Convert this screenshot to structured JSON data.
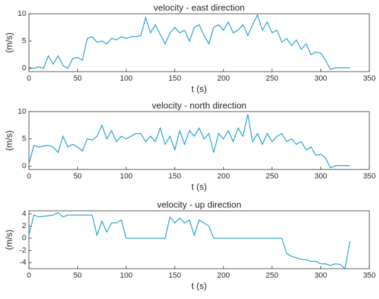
{
  "chart_data": [
    {
      "type": "line",
      "title": "velocity - east direction",
      "xlabel": "t (s)",
      "ylabel": "(m/s)",
      "color": "#1a9bd0",
      "xlim": [
        0,
        350
      ],
      "xticks": [
        0,
        50,
        100,
        150,
        200,
        250,
        300,
        350
      ],
      "ylim": [
        -0.6,
        10
      ],
      "yticks": [
        0,
        5,
        10
      ],
      "x": [
        0,
        5,
        10,
        15,
        20,
        25,
        30,
        35,
        40,
        45,
        50,
        55,
        60,
        65,
        70,
        75,
        80,
        85,
        90,
        95,
        100,
        105,
        110,
        115,
        120,
        125,
        130,
        135,
        140,
        145,
        150,
        155,
        160,
        165,
        170,
        175,
        180,
        185,
        190,
        195,
        200,
        205,
        210,
        215,
        220,
        225,
        230,
        235,
        240,
        245,
        250,
        255,
        260,
        265,
        270,
        275,
        280,
        285,
        290,
        295,
        300,
        305,
        310,
        315,
        320,
        325,
        330
      ],
      "values": [
        0.2,
        0,
        0.3,
        0,
        2.3,
        0.8,
        2.3,
        0.5,
        0,
        1.8,
        2,
        1.5,
        5.5,
        5.8,
        4.8,
        5,
        4.5,
        5.5,
        5.2,
        5.8,
        5.5,
        5.8,
        5.8,
        6,
        9.3,
        6.5,
        8,
        6.2,
        4.5,
        6.5,
        7.5,
        6.5,
        7,
        5,
        7.5,
        8,
        6,
        4.5,
        7.5,
        8,
        7,
        8.5,
        6.5,
        7,
        8,
        6,
        8,
        9.8,
        7,
        8.5,
        6.5,
        7,
        4.8,
        5.5,
        4.2,
        5.2,
        3.5,
        4.5,
        2.5,
        3,
        2.8,
        1.5,
        -0.2,
        0.1,
        0.1,
        0.1,
        0.1
      ]
    },
    {
      "type": "line",
      "title": "velocity - north direction",
      "xlabel": "t (s)",
      "ylabel": "(m/s)",
      "color": "#1a9bd0",
      "xlim": [
        0,
        350
      ],
      "xticks": [
        0,
        50,
        100,
        150,
        200,
        250,
        300,
        350
      ],
      "ylim": [
        -0.6,
        10
      ],
      "yticks": [
        0,
        5,
        10
      ],
      "x": [
        0,
        5,
        10,
        15,
        20,
        25,
        30,
        35,
        40,
        45,
        50,
        55,
        60,
        65,
        70,
        75,
        80,
        85,
        90,
        95,
        100,
        105,
        110,
        115,
        120,
        125,
        130,
        135,
        140,
        145,
        150,
        155,
        160,
        165,
        170,
        175,
        180,
        185,
        190,
        195,
        200,
        205,
        210,
        215,
        220,
        225,
        230,
        235,
        240,
        245,
        250,
        255,
        260,
        265,
        270,
        275,
        280,
        285,
        290,
        295,
        300,
        305,
        310,
        315,
        320,
        325,
        330
      ],
      "values": [
        0.5,
        3.8,
        3.5,
        3.7,
        3.8,
        3.5,
        2.5,
        5.5,
        3.5,
        4,
        3.5,
        2.8,
        5,
        4.8,
        5.5,
        7.5,
        5,
        6.5,
        4.5,
        5.5,
        5,
        5.5,
        6,
        6,
        4.5,
        5.5,
        4.5,
        7,
        4,
        5.5,
        3,
        6.5,
        4,
        6.5,
        5.5,
        7,
        5,
        6,
        2.5,
        6,
        5,
        6.5,
        4.5,
        7,
        5.5,
        9.5,
        4.5,
        6,
        4,
        6,
        4.5,
        5.5,
        6,
        4.5,
        5,
        4,
        4.5,
        3,
        3.5,
        2,
        2.2,
        1.5,
        -0.3,
        0.1,
        0.1,
        0.1,
        0.1
      ]
    },
    {
      "type": "line",
      "title": "velocity - up direction",
      "xlabel": "t (s)",
      "ylabel": "(m/s)",
      "color": "#1a9bd0",
      "xlim": [
        0,
        350
      ],
      "xticks": [
        0,
        50,
        100,
        150,
        200,
        250,
        300,
        350
      ],
      "ylim": [
        -5,
        4.5
      ],
      "yticks": [
        -4,
        -2,
        0,
        2,
        4
      ],
      "x": [
        0,
        5,
        10,
        15,
        20,
        25,
        30,
        35,
        40,
        45,
        50,
        55,
        60,
        65,
        70,
        75,
        80,
        85,
        90,
        95,
        100,
        105,
        110,
        115,
        120,
        125,
        130,
        135,
        140,
        145,
        150,
        155,
        160,
        165,
        170,
        175,
        180,
        185,
        190,
        195,
        200,
        205,
        210,
        215,
        220,
        225,
        230,
        235,
        240,
        245,
        250,
        255,
        260,
        265,
        270,
        275,
        280,
        285,
        290,
        295,
        300,
        305,
        310,
        315,
        320,
        325,
        330
      ],
      "values": [
        0.5,
        3.8,
        3.5,
        3.6,
        3.7,
        3.8,
        4.2,
        3.5,
        3.8,
        3.8,
        3.8,
        3.8,
        3.8,
        3.8,
        0.5,
        2.8,
        1,
        2.5,
        2.5,
        3,
        0,
        0,
        0,
        0,
        0,
        0,
        0,
        0,
        0,
        3.5,
        2.5,
        3.3,
        2.5,
        3,
        0.5,
        3,
        2.5,
        2,
        0,
        0,
        0,
        0,
        0,
        0,
        0,
        0,
        0,
        0,
        0,
        0,
        0,
        0,
        0,
        -2.5,
        -3,
        -3.2,
        -3.5,
        -3.5,
        -3.8,
        -3.8,
        -4.2,
        -4.2,
        -4.5,
        -4.2,
        -4.3,
        -5,
        -0.5
      ]
    }
  ]
}
